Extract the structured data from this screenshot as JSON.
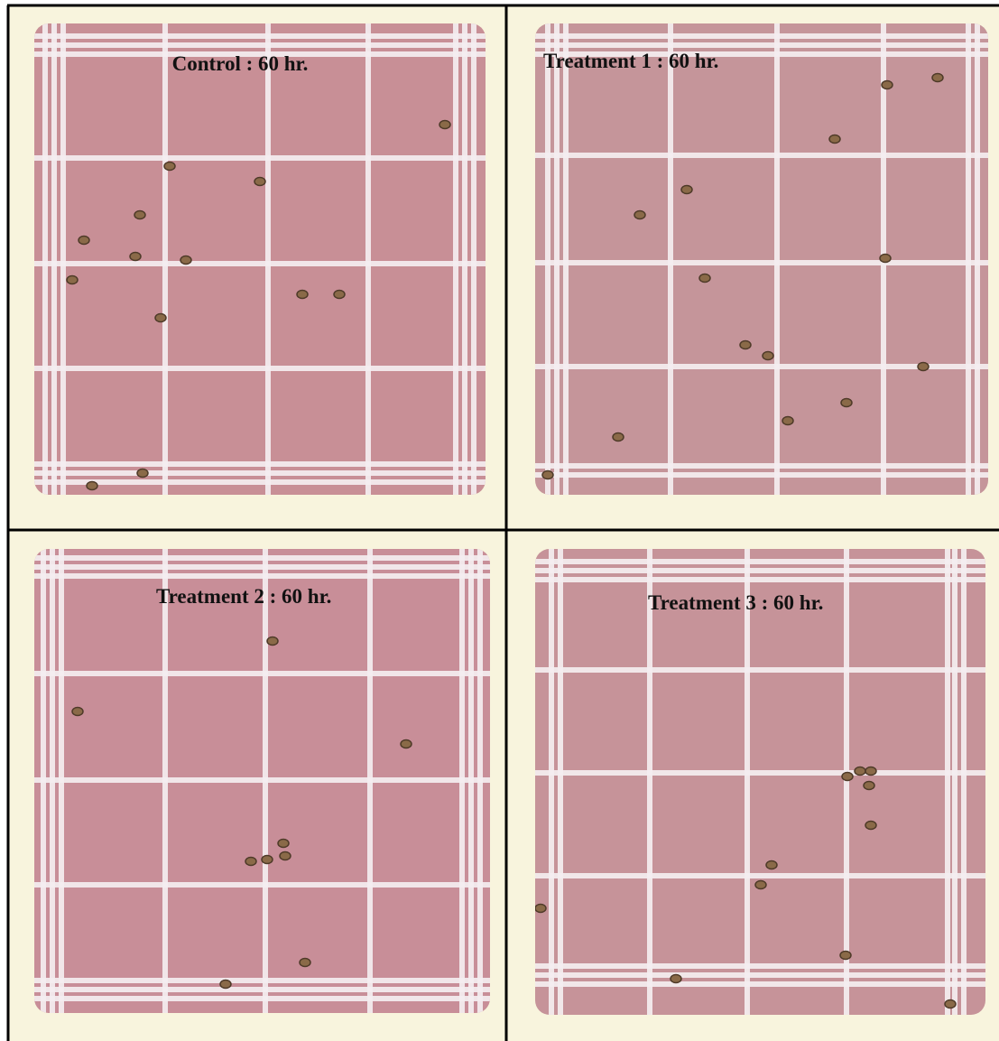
{
  "panels": [
    {
      "label": "Control : 60 hr."
    },
    {
      "label": "Treatment 1 : 60 hr."
    },
    {
      "label": "Treatment 2 : 60 hr."
    },
    {
      "label": "Treatment 3 : 60 hr."
    }
  ]
}
